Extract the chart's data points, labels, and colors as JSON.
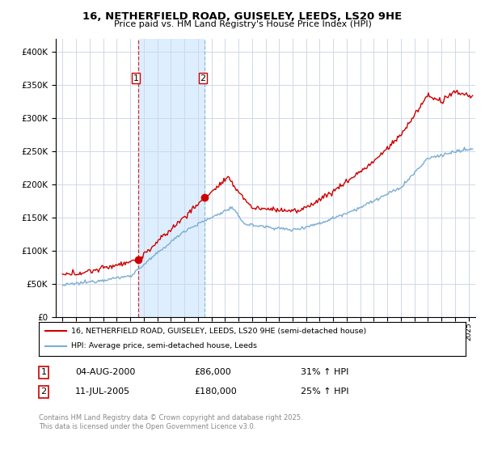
{
  "title_line1": "16, NETHERFIELD ROAD, GUISELEY, LEEDS, LS20 9HE",
  "title_line2": "Price paid vs. HM Land Registry's House Price Index (HPI)",
  "legend_label1": "16, NETHERFIELD ROAD, GUISELEY, LEEDS, LS20 9HE (semi-detached house)",
  "legend_label2": "HPI: Average price, semi-detached house, Leeds",
  "sale1_date": "04-AUG-2000",
  "sale1_price": "£86,000",
  "sale1_hpi": "31% ↑ HPI",
  "sale1_year": 2000.58,
  "sale1_value": 86000,
  "sale2_date": "11-JUL-2005",
  "sale2_price": "£180,000",
  "sale2_hpi": "25% ↑ HPI",
  "sale2_year": 2005.52,
  "sale2_value": 180000,
  "footnote": "Contains HM Land Registry data © Crown copyright and database right 2025.\nThis data is licensed under the Open Government Licence v3.0.",
  "ylim": [
    0,
    420000
  ],
  "yticks": [
    0,
    50000,
    100000,
    150000,
    200000,
    250000,
    300000,
    350000,
    400000
  ],
  "xlim_start": 1994.5,
  "xlim_end": 2025.5,
  "background_color": "#ffffff",
  "grid_color": "#d0d8e8",
  "red_color": "#cc0000",
  "blue_color": "#7aadd4",
  "shade_color": "#ddeeff",
  "sale_marker_color": "#cc0000",
  "vline1_color": "#cc0000",
  "vline2_color": "#7aadd4"
}
